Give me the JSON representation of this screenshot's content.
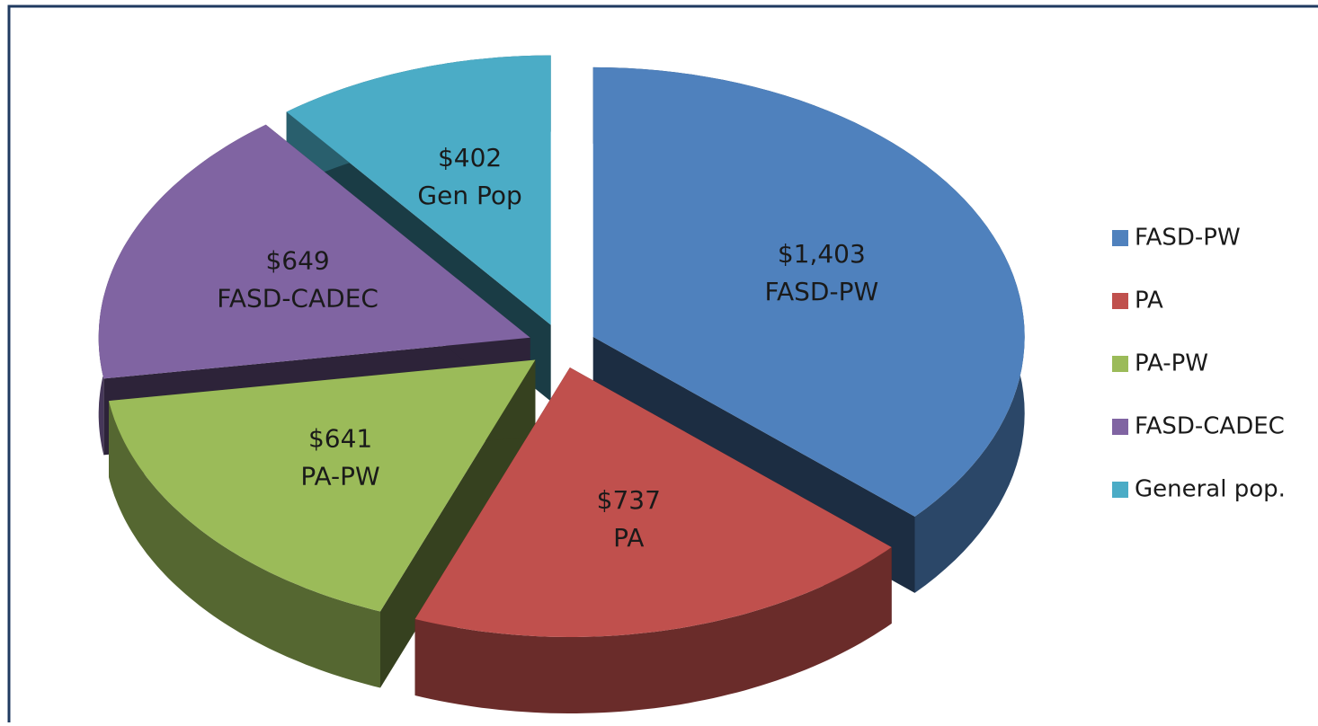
{
  "chart_data": {
    "type": "pie",
    "categories": [
      "FASD-PW",
      "PA",
      "PA-PW",
      "FASD-CADEC",
      "General pop."
    ],
    "values": [
      1403,
      737,
      641,
      649,
      402
    ],
    "value_labels": [
      "$1,403",
      "$737",
      "$641",
      "$649",
      "$402"
    ],
    "slice_labels": [
      "FASD-PW",
      "PA",
      "PA-PW",
      "FASD-CADEC",
      "Gen Pop"
    ],
    "colors": [
      "#4f81bd",
      "#c0504d",
      "#9bbb59",
      "#8064a2",
      "#4bacc6"
    ],
    "legend": "right"
  }
}
